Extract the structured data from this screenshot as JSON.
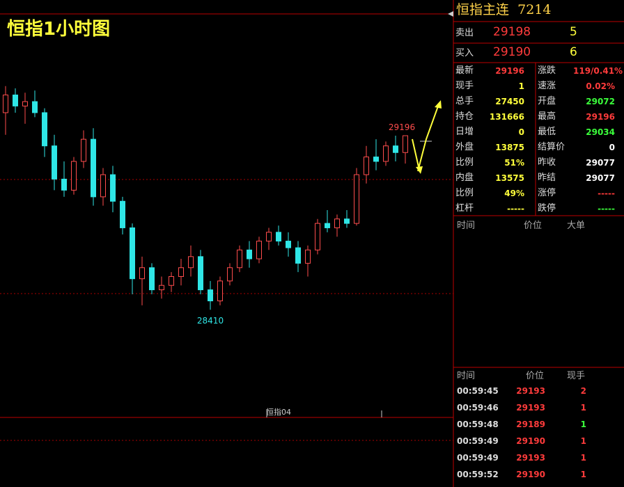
{
  "chart_title": "恒指1小时图",
  "chart_data": {
    "type": "candlestick",
    "ylim": [
      27930,
      29746
    ],
    "open": [
      29300,
      29380,
      29330,
      29350,
      29300,
      29150,
      29000,
      28950,
      29080,
      29180,
      28920,
      29020,
      28900,
      28780,
      28550,
      28600,
      28500,
      28520,
      28560,
      28600,
      28650,
      28500,
      28450,
      28540,
      28600,
      28680,
      28640,
      28720,
      28760,
      28720,
      28690,
      28620,
      28680,
      28800,
      28780,
      28820,
      28800,
      29020,
      29100,
      29080,
      29150,
      29120
    ],
    "high": [
      29420,
      29410,
      29390,
      29400,
      29320,
      29200,
      29080,
      29100,
      29220,
      29230,
      29050,
      29060,
      28920,
      28800,
      28650,
      28620,
      28560,
      28580,
      28640,
      28700,
      28680,
      28540,
      28560,
      28620,
      28700,
      28720,
      28740,
      28780,
      28790,
      28760,
      28720,
      28700,
      28820,
      28860,
      28840,
      28860,
      29050,
      29150,
      29180,
      29170,
      29196,
      29196
    ],
    "low": [
      29200,
      29300,
      29250,
      29280,
      29100,
      28950,
      28920,
      28930,
      29050,
      28880,
      28880,
      28850,
      28750,
      28480,
      28430,
      28480,
      28460,
      28490,
      28520,
      28560,
      28480,
      28410,
      28430,
      28520,
      28580,
      28600,
      28620,
      28680,
      28700,
      28650,
      28580,
      28560,
      28660,
      28760,
      28740,
      28780,
      28790,
      28980,
      29040,
      29060,
      29080,
      29070
    ],
    "close": [
      29380,
      29330,
      29350,
      29300,
      29150,
      29000,
      28950,
      29080,
      29180,
      28920,
      29020,
      28900,
      28780,
      28550,
      28600,
      28500,
      28520,
      28560,
      28600,
      28650,
      28500,
      28450,
      28540,
      28600,
      28680,
      28640,
      28720,
      28760,
      28720,
      28690,
      28620,
      28680,
      28800,
      28780,
      28820,
      28800,
      29020,
      29100,
      29080,
      29150,
      29120,
      29196
    ],
    "high_label": 29196,
    "low_label": 28410,
    "indicator_label": "恒指04"
  },
  "quote": {
    "name": "恒指主连",
    "code": "7214",
    "ask": {
      "label": "卖出",
      "price": 29198,
      "volume": 5
    },
    "bid": {
      "label": "买入",
      "price": 29190,
      "volume": 6
    },
    "stats": [
      {
        "label": "最新",
        "value": 29196,
        "color": "#ff3b3b"
      },
      {
        "label": "涨跌",
        "value": "119/0.41%",
        "color": "#ff3b3b"
      },
      {
        "label": "现手",
        "value": 1,
        "color": "#ffff3b"
      },
      {
        "label": "速涨",
        "value": "0.02%",
        "color": "#ff3b3b"
      },
      {
        "label": "总手",
        "value": 27450,
        "color": "#ffff3b"
      },
      {
        "label": "开盘",
        "value": 29072,
        "color": "#3bff3b"
      },
      {
        "label": "持仓",
        "value": 131666,
        "color": "#ffff3b"
      },
      {
        "label": "最高",
        "value": 29196,
        "color": "#ff3b3b"
      },
      {
        "label": "日增",
        "value": 0,
        "color": "#ffff3b"
      },
      {
        "label": "最低",
        "value": 29034,
        "color": "#3bff3b"
      },
      {
        "label": "外盘",
        "value": 13875,
        "color": "#ffff3b"
      },
      {
        "label": "结算价",
        "value": 0,
        "color": "#ffffff"
      },
      {
        "label": "比例",
        "value": "51%",
        "color": "#ffff3b"
      },
      {
        "label": "昨收",
        "value": 29077,
        "color": "#ffffff"
      },
      {
        "label": "内盘",
        "value": 13575,
        "color": "#ffff3b"
      },
      {
        "label": "昨结",
        "value": 29077,
        "color": "#ffffff"
      },
      {
        "label": "比例",
        "value": "49%",
        "color": "#ffff3b"
      },
      {
        "label": "涨停",
        "value": "-----",
        "color": "#ff3b3b"
      },
      {
        "label": "杠杆",
        "value": "-----",
        "color": "#ffff3b"
      },
      {
        "label": "跌停",
        "value": "-----",
        "color": "#3bff3b"
      }
    ],
    "ticks_header": [
      "时间",
      "价位",
      "大单"
    ],
    "trades_header": [
      "时间",
      "价位",
      "现手"
    ],
    "trades": [
      {
        "time": "00:59:45",
        "price": 29193,
        "volume": 2,
        "color": "#ff3b3b"
      },
      {
        "time": "00:59:46",
        "price": 29193,
        "volume": 1,
        "color": "#ff3b3b"
      },
      {
        "time": "00:59:48",
        "price": 29189,
        "volume": 1,
        "color": "#3bff3b"
      },
      {
        "time": "00:59:49",
        "price": 29190,
        "volume": 1,
        "color": "#ff3b3b"
      },
      {
        "time": "00:59:49",
        "price": 29193,
        "volume": 1,
        "color": "#ff3b3b"
      },
      {
        "time": "00:59:52",
        "price": 29190,
        "volume": 1,
        "color": "#ff3b3b"
      }
    ]
  }
}
